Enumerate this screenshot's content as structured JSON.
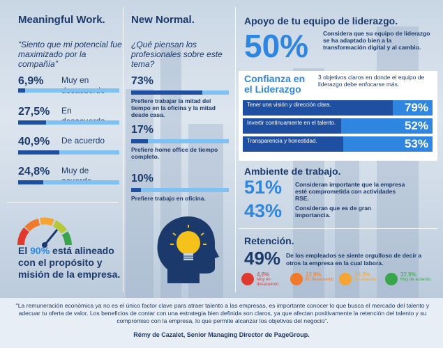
{
  "col1": {
    "title": "Meaningful Work.",
    "quote": "“Siento que mi potencial fue maximizado por la compañía”",
    "stats": [
      {
        "pct": "6,9%",
        "label": "Muy en desacuerdo",
        "value": 6.9
      },
      {
        "pct": "27,5%",
        "label": "En desacuerdo",
        "value": 27.5
      },
      {
        "pct": "40,9%",
        "label": "De acuerdo",
        "value": 40.9
      },
      {
        "pct": "24,8%",
        "label": "Muy de acuerdo",
        "value": 24.8
      }
    ],
    "conclusion_pre": "El ",
    "conclusion_hl": "90%",
    "conclusion_post": " está alineado con el propósito y misión de la empresa."
  },
  "col2": {
    "title": "New Normal.",
    "question": "¿Qué piensan los profesionales sobre este tema?",
    "options": [
      {
        "pct": "73%",
        "text": "Prefiere trabajar la mitad del tiempo en la oficina y la mitad desde casa.",
        "value": 73
      },
      {
        "pct": "17%",
        "text": "Prefiere home office de tiempo completo.",
        "value": 17
      },
      {
        "pct": "10%",
        "text": "Prefiere trabajo en oficina.",
        "value": 10
      }
    ]
  },
  "col3": {
    "leadership_title": "Apoyo de tu equipo de liderazgo.",
    "leadership_pct": "50%",
    "leadership_text": "Considera que su equipo de liderazgo se ha adaptado bien a la transformación digital y al cambio.",
    "confidence_title": "Confianza en el Liderazgo",
    "confidence_sub": "3 objetivos claros en donde el equipo de liderazgo debe enfocarse más.",
    "confidence_rows": [
      {
        "label": "Tener una visión y dirección clara.",
        "pct": "79%",
        "value": 79
      },
      {
        "label": "Invertir continuamente en el talento.",
        "pct": "52%",
        "value": 52
      },
      {
        "label": "Transparencia y honestidad.",
        "pct": "53%",
        "value": 53
      }
    ],
    "env_title": "Ambiente de trabajo.",
    "env": [
      {
        "pct": "51%",
        "text": "Consideran importante que la empresa esté comprometida con actividades RSE."
      },
      {
        "pct": "43%",
        "text": "Consideran que es de gran importancia."
      }
    ],
    "ret_title": "Retención.",
    "ret_pct": "49%",
    "ret_text": "De los empleados se siente orgulloso de decir a otros la empresa en la cual labora.",
    "faces": [
      {
        "pct": "4,8%",
        "label": "Muy en desacuerdo.",
        "color": "#e0392d"
      },
      {
        "pct": "12,9%",
        "label": "En desacuerdo.",
        "color": "#f07a2a"
      },
      {
        "pct": "49,3%",
        "label": "De acuerdo.",
        "color": "#f5a531"
      },
      {
        "pct": "32,9%",
        "label": "Muy de acuerdo.",
        "color": "#3aa64b"
      }
    ]
  },
  "footer": {
    "quote": "“La remuneración económica ya no es el único factor clave para atraer talento a las empresas, es importante conocer lo que busca el mercado del talento y adecuar tu oferta de valor. Los beneficios de contar con una estrategia bien definida son claros, ya que afectan positivamente la retención del talento y su compromiso con la empresa, lo que permite alcanzar los objetivos del negocio”.",
    "author": "Rémy de Cazalet, Senior Managing Director de PageGroup."
  },
  "colors": {
    "dark_blue": "#1b3a6b",
    "accent_blue": "#2f86e0",
    "bar_dark": "#1f4fa0",
    "bar_light": "#7fc1f2"
  }
}
